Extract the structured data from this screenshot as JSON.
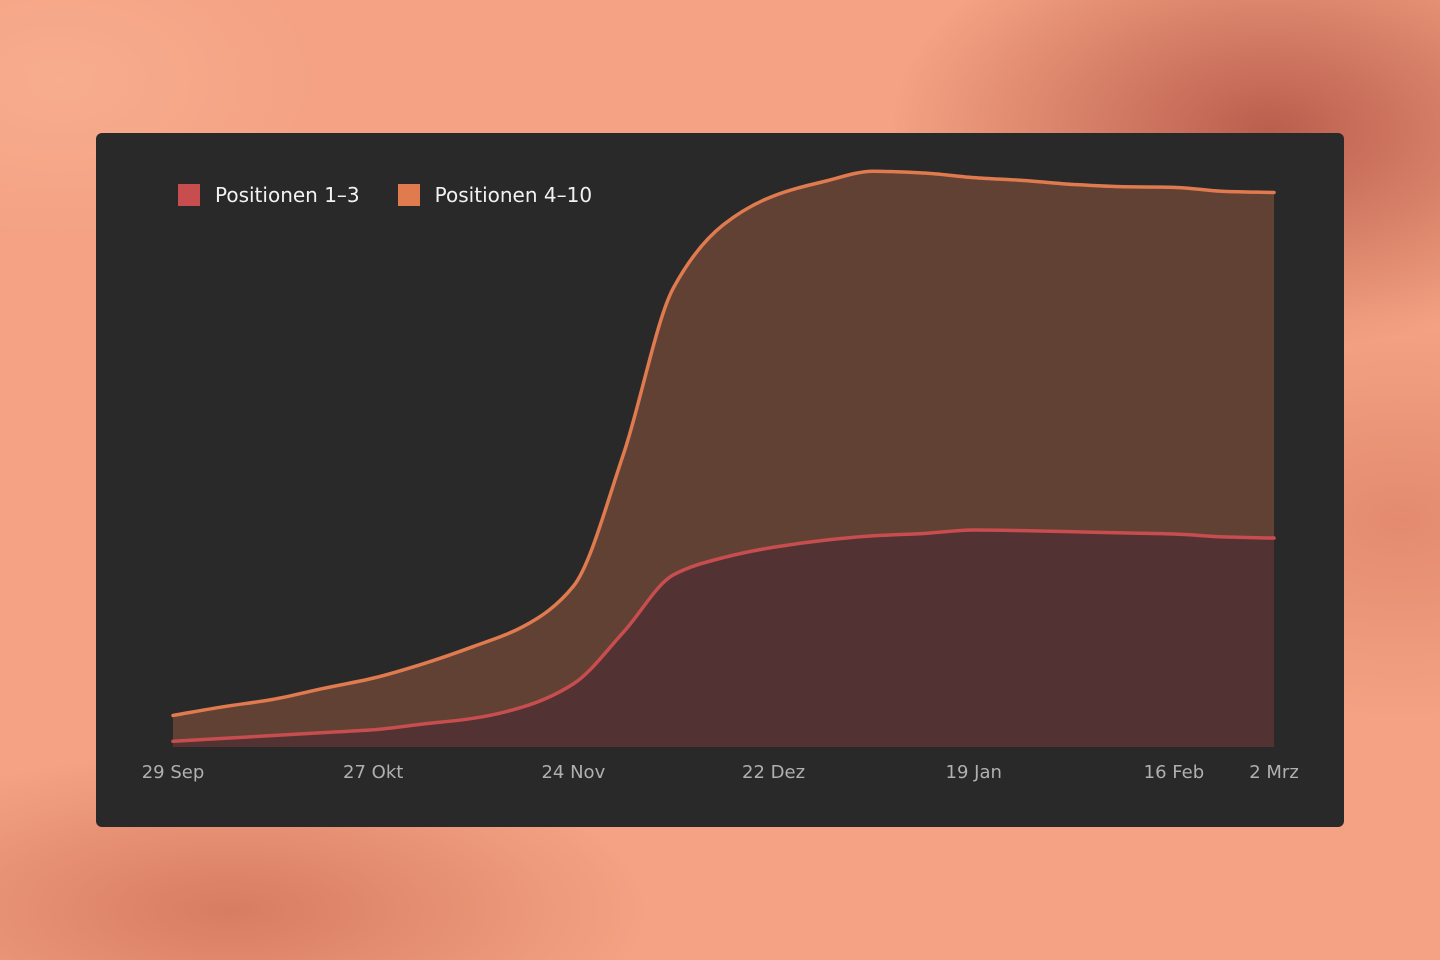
{
  "chart_data": {
    "type": "area",
    "stacked": true,
    "title": "",
    "xlabel": "",
    "ylabel": "",
    "legend_position": "top-left",
    "grid": false,
    "x": [
      "2022-09-29",
      "2022-10-06",
      "2022-10-13",
      "2022-10-20",
      "2022-10-27",
      "2022-11-03",
      "2022-11-10",
      "2022-11-17",
      "2022-11-24",
      "2022-12-01",
      "2022-12-08",
      "2022-12-15",
      "2022-12-22",
      "2022-12-29",
      "2023-01-05",
      "2023-01-12",
      "2023-01-19",
      "2023-01-26",
      "2023-02-02",
      "2023-02-09",
      "2023-02-16",
      "2023-02-23",
      "2023-03-02"
    ],
    "x_ticks": [
      {
        "date": "2022-09-29",
        "label": "29 Sep"
      },
      {
        "date": "2022-10-27",
        "label": "27 Okt"
      },
      {
        "date": "2022-11-24",
        "label": "24 Nov"
      },
      {
        "date": "2022-12-22",
        "label": "22 Dez"
      },
      {
        "date": "2023-01-19",
        "label": "19 Jan"
      },
      {
        "date": "2023-02-16",
        "label": "16 Feb"
      },
      {
        "date": "2023-03-02",
        "label": "2 Mrz"
      }
    ],
    "ylim": [
      0,
      100
    ],
    "series": [
      {
        "name": "Positionen 1–3",
        "color": "#c74d4f",
        "values": [
          1,
          1.5,
          2,
          2.5,
          3,
          4,
          5,
          7,
          11,
          20,
          30,
          33,
          34.8,
          36,
          36.8,
          37.2,
          37.8,
          37.7,
          37.5,
          37.3,
          37.1,
          36.6,
          36.4
        ]
      },
      {
        "name": "Positionen 4–10",
        "color": "#e07a4f",
        "values": [
          4.5,
          5.5,
          6.3,
          7.7,
          9,
          10.5,
          12.5,
          14,
          17,
          31,
          50,
          58,
          61.2,
          62.5,
          63.5,
          62.8,
          61.4,
          61,
          60.5,
          60.3,
          60.4,
          60.2,
          60.2
        ]
      }
    ]
  }
}
